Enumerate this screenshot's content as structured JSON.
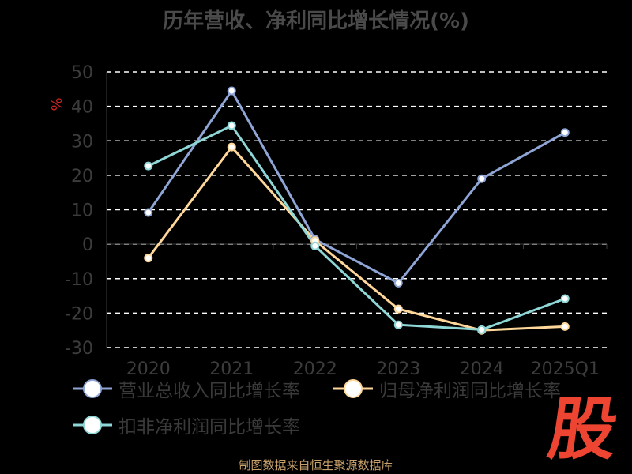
{
  "chart_data": {
    "type": "line",
    "title": "历年营收、净利同比增长情况(%)",
    "ylabel": "%",
    "xlabel": "",
    "categories": [
      "2020",
      "2021",
      "2022",
      "2023",
      "2024",
      "2025Q1"
    ],
    "ylim": [
      -30,
      50
    ],
    "yticks": [
      50,
      40,
      30,
      20,
      10,
      0,
      -10,
      -20,
      -30
    ],
    "grid": true,
    "legend_position": "bottom",
    "series": [
      {
        "name": "营业总收入同比增长率",
        "color": "#8fa5d6",
        "values": [
          9.2,
          44.5,
          1.4,
          -11.3,
          19.0,
          32.4
        ]
      },
      {
        "name": "归母净利润同比增长率",
        "color": "#ffd79a",
        "values": [
          -4.0,
          28.2,
          1.0,
          -18.8,
          -25.0,
          -23.9
        ]
      },
      {
        "name": "扣非净利润同比增长率",
        "color": "#8fd6d6",
        "values": [
          22.7,
          34.4,
          -0.5,
          -23.4,
          -24.8,
          -15.8
        ]
      }
    ]
  },
  "source_text": "制图数据来自恒生聚源数据库",
  "logo_text": "股"
}
